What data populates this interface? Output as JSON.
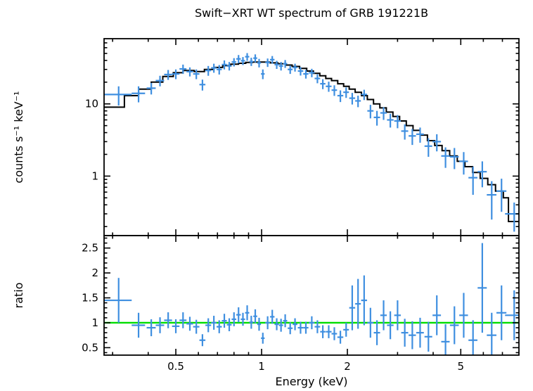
{
  "title": "Swift−XRT WT spectrum of GRB 191221B",
  "colors": {
    "data": "#3f8fe0",
    "model": "#000000",
    "reference": "#00dd00",
    "axis": "#000000",
    "background": "#ffffff"
  },
  "chart_data": [
    {
      "type": "scatter",
      "panel": "spectrum",
      "title": "Swift−XRT WT spectrum of GRB 191221B",
      "xlabel": "Energy (keV)",
      "ylabel": "counts s⁻¹ keV⁻¹",
      "xscale": "log",
      "yscale": "log",
      "xlim": [
        0.28,
        8.0
      ],
      "ylim": [
        0.15,
        80
      ],
      "xticks": [
        0.5,
        1,
        2,
        5
      ],
      "yticks": [
        1,
        10
      ],
      "grid": false,
      "legend": "none",
      "point_columns": [
        "energy_keV",
        "energy_err",
        "counts_per_s_per_keV",
        "counts_err"
      ],
      "points": [
        [
          0.315,
          0.035,
          13.5,
          4.0
        ],
        [
          0.37,
          0.02,
          14.0,
          3.5
        ],
        [
          0.41,
          0.015,
          16.5,
          3.0
        ],
        [
          0.44,
          0.015,
          21.0,
          3.5
        ],
        [
          0.47,
          0.015,
          25.5,
          4.0
        ],
        [
          0.5,
          0.015,
          26.0,
          4.0
        ],
        [
          0.53,
          0.015,
          30.5,
          4.5
        ],
        [
          0.56,
          0.015,
          28.0,
          4.0
        ],
        [
          0.59,
          0.015,
          26.0,
          4.0
        ],
        [
          0.62,
          0.015,
          18.5,
          3.2
        ],
        [
          0.65,
          0.015,
          29.0,
          4.5
        ],
        [
          0.68,
          0.015,
          31.5,
          4.5
        ],
        [
          0.71,
          0.015,
          30.0,
          4.5
        ],
        [
          0.74,
          0.015,
          35.0,
          5.0
        ],
        [
          0.77,
          0.015,
          33.5,
          4.5
        ],
        [
          0.8,
          0.015,
          38.0,
          5.0
        ],
        [
          0.83,
          0.015,
          42.0,
          5.5
        ],
        [
          0.86,
          0.015,
          39.5,
          5.0
        ],
        [
          0.89,
          0.015,
          45.0,
          5.5
        ],
        [
          0.92,
          0.015,
          38.5,
          5.0
        ],
        [
          0.95,
          0.015,
          43.0,
          5.5
        ],
        [
          0.98,
          0.015,
          37.0,
          5.0
        ],
        [
          1.01,
          0.015,
          26.0,
          4.0
        ],
        [
          1.05,
          0.02,
          37.5,
          5.0
        ],
        [
          1.09,
          0.02,
          41.0,
          5.0
        ],
        [
          1.13,
          0.02,
          35.0,
          4.5
        ],
        [
          1.17,
          0.02,
          33.5,
          4.5
        ],
        [
          1.21,
          0.02,
          36.0,
          4.5
        ],
        [
          1.26,
          0.025,
          30.0,
          4.0
        ],
        [
          1.31,
          0.025,
          32.0,
          4.0
        ],
        [
          1.37,
          0.03,
          28.5,
          3.8
        ],
        [
          1.43,
          0.03,
          26.0,
          3.6
        ],
        [
          1.5,
          0.035,
          27.0,
          3.6
        ],
        [
          1.57,
          0.035,
          22.5,
          3.2
        ],
        [
          1.64,
          0.035,
          19.0,
          3.0
        ],
        [
          1.72,
          0.04,
          17.5,
          2.8
        ],
        [
          1.8,
          0.04,
          15.5,
          2.6
        ],
        [
          1.89,
          0.045,
          13.0,
          2.4
        ],
        [
          1.98,
          0.045,
          14.5,
          2.4
        ],
        [
          2.08,
          0.05,
          12.0,
          2.2
        ],
        [
          2.18,
          0.05,
          11.0,
          2.0
        ],
        [
          2.29,
          0.055,
          13.5,
          2.2
        ],
        [
          2.41,
          0.06,
          8.0,
          1.7
        ],
        [
          2.54,
          0.065,
          6.5,
          1.5
        ],
        [
          2.68,
          0.07,
          7.5,
          1.5
        ],
        [
          2.83,
          0.075,
          6.0,
          1.3
        ],
        [
          3.0,
          0.08,
          5.8,
          1.2
        ],
        [
          3.18,
          0.09,
          4.2,
          1.0
        ],
        [
          3.38,
          0.1,
          3.6,
          0.9
        ],
        [
          3.6,
          0.11,
          3.8,
          0.9
        ],
        [
          3.85,
          0.12,
          2.6,
          0.75
        ],
        [
          4.12,
          0.14,
          3.0,
          0.8
        ],
        [
          4.42,
          0.15,
          1.9,
          0.6
        ],
        [
          4.75,
          0.17,
          1.85,
          0.6
        ],
        [
          5.12,
          0.18,
          1.6,
          0.55
        ],
        [
          5.52,
          0.2,
          0.95,
          0.4
        ],
        [
          5.95,
          0.22,
          1.15,
          0.45
        ],
        [
          6.42,
          0.25,
          0.55,
          0.3
        ],
        [
          6.95,
          0.28,
          0.62,
          0.3
        ],
        [
          7.7,
          0.55,
          0.3,
          0.13
        ]
      ],
      "model_step_columns": [
        "bin_edge_keV",
        "model_counts_per_s_per_keV"
      ],
      "model_steps": [
        [
          0.28,
          9
        ],
        [
          0.33,
          13
        ],
        [
          0.37,
          16
        ],
        [
          0.41,
          20
        ],
        [
          0.45,
          24
        ],
        [
          0.49,
          27
        ],
        [
          0.53,
          29
        ],
        [
          0.58,
          28
        ],
        [
          0.63,
          30
        ],
        [
          0.68,
          32
        ],
        [
          0.73,
          34
        ],
        [
          0.78,
          35.5
        ],
        [
          0.83,
          36.5
        ],
        [
          0.88,
          37.5
        ],
        [
          0.93,
          38
        ],
        [
          1.0,
          38
        ],
        [
          1.07,
          37
        ],
        [
          1.14,
          36
        ],
        [
          1.21,
          34.5
        ],
        [
          1.28,
          33
        ],
        [
          1.36,
          31
        ],
        [
          1.44,
          28.5
        ],
        [
          1.52,
          26.5
        ],
        [
          1.6,
          24.5
        ],
        [
          1.68,
          22.5
        ],
        [
          1.76,
          21
        ],
        [
          1.85,
          19
        ],
        [
          1.94,
          17.5
        ],
        [
          2.03,
          16
        ],
        [
          2.13,
          14.5
        ],
        [
          2.24,
          13
        ],
        [
          2.35,
          11.5
        ],
        [
          2.47,
          10
        ],
        [
          2.6,
          8.8
        ],
        [
          2.74,
          7.7
        ],
        [
          2.89,
          6.7
        ],
        [
          3.05,
          5.8
        ],
        [
          3.22,
          5.0
        ],
        [
          3.4,
          4.3
        ],
        [
          3.6,
          3.7
        ],
        [
          3.82,
          3.1
        ],
        [
          4.05,
          2.65
        ],
        [
          4.3,
          2.25
        ],
        [
          4.57,
          1.9
        ],
        [
          4.86,
          1.6
        ],
        [
          5.17,
          1.35
        ],
        [
          5.5,
          1.12
        ],
        [
          5.85,
          0.93
        ],
        [
          6.22,
          0.76
        ],
        [
          6.62,
          0.62
        ],
        [
          7.05,
          0.5
        ],
        [
          7.35,
          0.235
        ],
        [
          8.0,
          0.235
        ]
      ]
    },
    {
      "type": "scatter",
      "panel": "ratio",
      "xlabel": "Energy (keV)",
      "ylabel": "ratio",
      "xscale": "log",
      "yscale": "linear",
      "xlim": [
        0.28,
        8.0
      ],
      "ylim": [
        0.35,
        2.75
      ],
      "yticks": [
        0.5,
        1,
        1.5,
        2,
        2.5
      ],
      "grid": false,
      "legend": "none",
      "reference_line": 1,
      "point_columns": [
        "energy_keV",
        "energy_err",
        "ratio",
        "ratio_err"
      ],
      "points": [
        [
          0.315,
          0.035,
          1.45,
          0.45
        ],
        [
          0.37,
          0.02,
          0.95,
          0.25
        ],
        [
          0.41,
          0.015,
          0.9,
          0.17
        ],
        [
          0.44,
          0.015,
          0.95,
          0.16
        ],
        [
          0.47,
          0.015,
          1.05,
          0.16
        ],
        [
          0.5,
          0.015,
          0.93,
          0.14
        ],
        [
          0.53,
          0.015,
          1.05,
          0.16
        ],
        [
          0.56,
          0.015,
          0.98,
          0.14
        ],
        [
          0.59,
          0.015,
          0.92,
          0.14
        ],
        [
          0.62,
          0.015,
          0.65,
          0.12
        ],
        [
          0.65,
          0.015,
          0.95,
          0.14
        ],
        [
          0.68,
          0.015,
          1.0,
          0.14
        ],
        [
          0.71,
          0.015,
          0.92,
          0.13
        ],
        [
          0.74,
          0.015,
          1.04,
          0.14
        ],
        [
          0.77,
          0.015,
          0.96,
          0.13
        ],
        [
          0.8,
          0.015,
          1.07,
          0.14
        ],
        [
          0.83,
          0.015,
          1.16,
          0.15
        ],
        [
          0.86,
          0.015,
          1.07,
          0.13
        ],
        [
          0.89,
          0.015,
          1.2,
          0.15
        ],
        [
          0.92,
          0.015,
          1.01,
          0.13
        ],
        [
          0.95,
          0.015,
          1.13,
          0.14
        ],
        [
          0.98,
          0.015,
          0.97,
          0.13
        ],
        [
          1.01,
          0.015,
          0.69,
          0.11
        ],
        [
          1.05,
          0.02,
          1.0,
          0.13
        ],
        [
          1.09,
          0.02,
          1.12,
          0.14
        ],
        [
          1.13,
          0.02,
          0.97,
          0.12
        ],
        [
          1.17,
          0.02,
          0.95,
          0.13
        ],
        [
          1.21,
          0.02,
          1.04,
          0.13
        ],
        [
          1.26,
          0.025,
          0.89,
          0.12
        ],
        [
          1.31,
          0.025,
          0.97,
          0.12
        ],
        [
          1.37,
          0.03,
          0.9,
          0.12
        ],
        [
          1.43,
          0.03,
          0.9,
          0.12
        ],
        [
          1.5,
          0.035,
          1.0,
          0.13
        ],
        [
          1.57,
          0.035,
          0.92,
          0.13
        ],
        [
          1.64,
          0.035,
          0.82,
          0.13
        ],
        [
          1.72,
          0.04,
          0.82,
          0.13
        ],
        [
          1.8,
          0.04,
          0.78,
          0.13
        ],
        [
          1.89,
          0.045,
          0.71,
          0.13
        ],
        [
          1.98,
          0.045,
          0.86,
          0.14
        ],
        [
          2.08,
          0.05,
          1.3,
          0.45
        ],
        [
          2.18,
          0.05,
          1.38,
          0.5
        ],
        [
          2.29,
          0.055,
          1.45,
          0.5
        ],
        [
          2.41,
          0.06,
          1.0,
          0.3
        ],
        [
          2.54,
          0.065,
          0.8,
          0.25
        ],
        [
          2.68,
          0.07,
          1.15,
          0.3
        ],
        [
          2.83,
          0.075,
          0.95,
          0.28
        ],
        [
          3.0,
          0.08,
          1.15,
          0.3
        ],
        [
          3.18,
          0.09,
          0.8,
          0.28
        ],
        [
          3.38,
          0.1,
          0.75,
          0.28
        ],
        [
          3.6,
          0.11,
          0.8,
          0.3
        ],
        [
          3.85,
          0.12,
          0.72,
          0.3
        ],
        [
          4.12,
          0.14,
          1.15,
          0.4
        ],
        [
          4.42,
          0.15,
          0.62,
          0.35
        ],
        [
          4.75,
          0.17,
          0.95,
          0.38
        ],
        [
          5.12,
          0.18,
          1.15,
          0.45
        ],
        [
          5.52,
          0.2,
          0.65,
          0.4
        ],
        [
          5.95,
          0.22,
          1.7,
          0.9
        ],
        [
          6.42,
          0.25,
          0.75,
          0.45
        ],
        [
          6.95,
          0.28,
          1.2,
          0.55
        ],
        [
          7.7,
          0.55,
          1.15,
          0.5
        ]
      ]
    }
  ]
}
